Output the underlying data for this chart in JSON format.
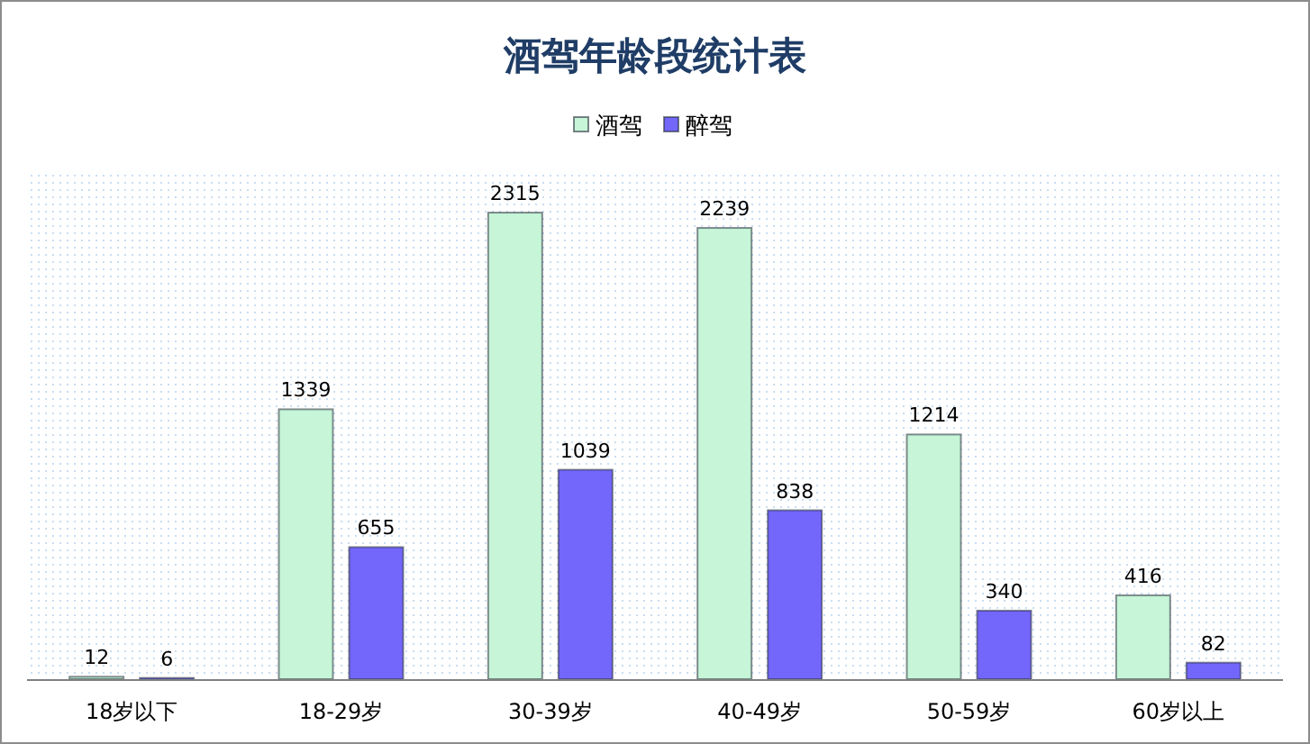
{
  "chart_data": {
    "type": "bar",
    "title": "酒驾年龄段统计表",
    "legend": "top",
    "data_labels": true,
    "categories": [
      "18岁以下",
      "18-29岁",
      "30-39岁",
      "40-49岁",
      "50-59岁",
      "60岁以上"
    ],
    "series": [
      {
        "name": "酒驾",
        "color": "#c6f5d8",
        "values": [
          12,
          1339,
          2315,
          2239,
          1214,
          416
        ]
      },
      {
        "name": "醉驾",
        "color": "#7366fb",
        "values": [
          6,
          655,
          1039,
          838,
          340,
          82
        ]
      }
    ]
  }
}
